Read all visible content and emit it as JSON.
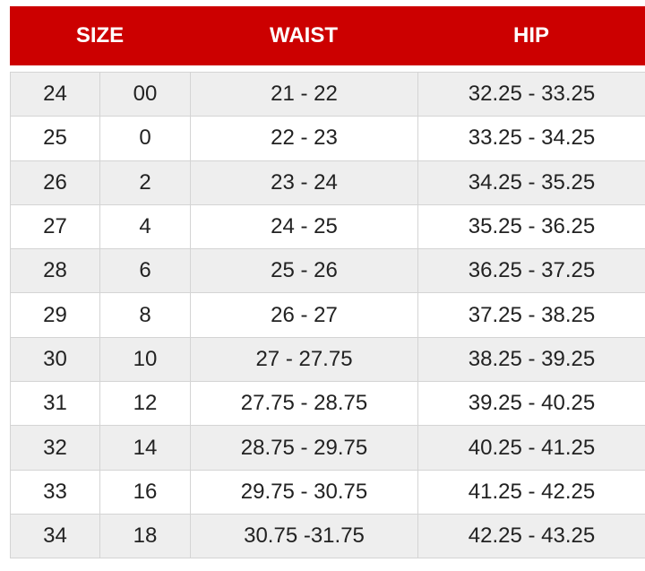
{
  "header": {
    "size": "SIZE",
    "waist": "WAIST",
    "hip": "HIP"
  },
  "colors": {
    "header_bg": "#cc0000",
    "row_alt": "#eeeeee"
  },
  "rows": [
    [
      "24",
      "00",
      "21 - 22",
      "32.25 - 33.25"
    ],
    [
      "25",
      "0",
      "22 - 23",
      "33.25 - 34.25"
    ],
    [
      "26",
      "2",
      "23 - 24",
      "34.25 - 35.25"
    ],
    [
      "27",
      "4",
      "24 - 25",
      "35.25 - 36.25"
    ],
    [
      "28",
      "6",
      "25 - 26",
      "36.25 - 37.25"
    ],
    [
      "29",
      "8",
      "26 - 27",
      "37.25 - 38.25"
    ],
    [
      "30",
      "10",
      "27 - 27.75",
      "38.25 - 39.25"
    ],
    [
      "31",
      "12",
      "27.75 - 28.75",
      "39.25 - 40.25"
    ],
    [
      "32",
      "14",
      "28.75 - 29.75",
      "40.25 - 41.25"
    ],
    [
      "33",
      "16",
      "29.75 - 30.75",
      "41.25 - 42.25"
    ],
    [
      "34",
      "18",
      "30.75 -31.75",
      "42.25 - 43.25"
    ]
  ]
}
